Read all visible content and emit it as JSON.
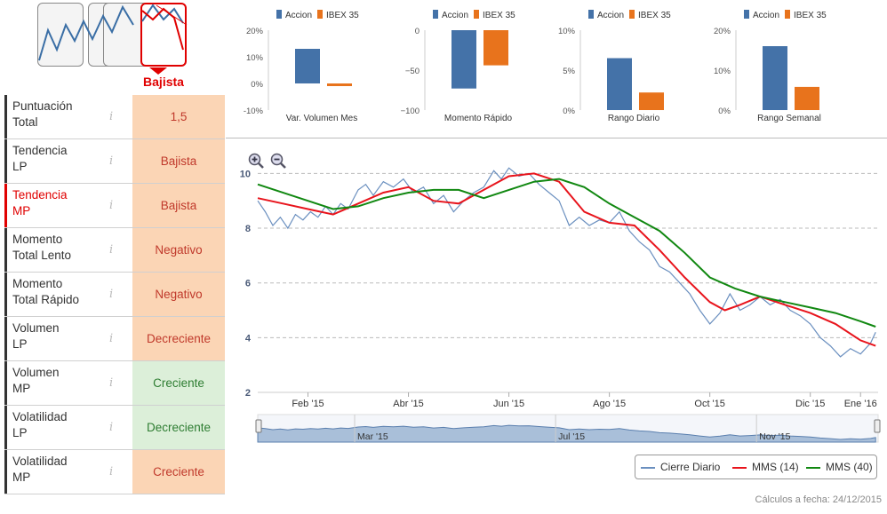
{
  "trend": {
    "active_label": "Bajista",
    "thumbnails": [
      "alcista",
      "lateral-alcista",
      "lateral",
      "bajista"
    ]
  },
  "ratings": [
    {
      "label_l1": "Puntuación",
      "label_l2": "Total",
      "value": "1,5",
      "tone": "bad",
      "highlight": false
    },
    {
      "label_l1": "Tendencia",
      "label_l2": "LP",
      "value": "Bajista",
      "tone": "bad",
      "highlight": false
    },
    {
      "label_l1": "Tendencia",
      "label_l2": "MP",
      "value": "Bajista",
      "tone": "bad",
      "highlight": true
    },
    {
      "label_l1": "Momento",
      "label_l2": "Total Lento",
      "value": "Negativo",
      "tone": "bad",
      "highlight": false
    },
    {
      "label_l1": "Momento",
      "label_l2": "Total Rápido",
      "value": "Negativo",
      "tone": "bad",
      "highlight": false
    },
    {
      "label_l1": "Volumen",
      "label_l2": "LP",
      "value": "Decreciente",
      "tone": "bad",
      "highlight": false
    },
    {
      "label_l1": "Volumen",
      "label_l2": "MP",
      "value": "Creciente",
      "tone": "good",
      "highlight": false
    },
    {
      "label_l1": "Volatilidad",
      "label_l2": "LP",
      "value": "Decreciente",
      "tone": "good",
      "highlight": false
    },
    {
      "label_l1": "Volatilidad",
      "label_l2": "MP",
      "value": "Creciente",
      "tone": "bad",
      "highlight": false
    }
  ],
  "info_icon": "i",
  "colors": {
    "accion": "#4472a8",
    "ibex": "#e8731c",
    "cierre": "#6a8fbf",
    "mms14": "#e8141c",
    "mms40": "#118811"
  },
  "chart_data": [
    {
      "type": "bar",
      "title": "Var. Volumen Mes",
      "legend": [
        "Accion",
        "IBEX 35"
      ],
      "categories": [
        "Accion",
        "IBEX 35"
      ],
      "values": [
        13,
        -1
      ],
      "yticks": [
        "20%",
        "10%",
        "0%",
        "-10%"
      ],
      "tick_values": [
        20,
        10,
        0,
        -10
      ],
      "ylim": [
        -10,
        20
      ]
    },
    {
      "type": "bar",
      "title": "Momento Rápido",
      "legend": [
        "Accion",
        "IBEX 35"
      ],
      "categories": [
        "Accion",
        "IBEX 35"
      ],
      "values": [
        -73,
        -44
      ],
      "yticks": [
        "0",
        "−50",
        "−100"
      ],
      "tick_values": [
        0,
        -50,
        -100
      ],
      "ylim": [
        -100,
        0
      ]
    },
    {
      "type": "bar",
      "title": "Rango Diario",
      "legend": [
        "Accion",
        "IBEX 35"
      ],
      "categories": [
        "Accion",
        "IBEX 35"
      ],
      "values": [
        6.5,
        2.2
      ],
      "yticks": [
        "10%",
        "5%",
        "0%"
      ],
      "tick_values": [
        10,
        5,
        0
      ],
      "ylim": [
        0,
        10
      ]
    },
    {
      "type": "bar",
      "title": "Rango Semanal",
      "legend": [
        "Accion",
        "IBEX 35"
      ],
      "categories": [
        "Accion",
        "IBEX 35"
      ],
      "values": [
        16,
        5.8
      ],
      "yticks": [
        "20%",
        "10%",
        "0%"
      ],
      "tick_values": [
        20,
        10,
        0
      ],
      "ylim": [
        0,
        20
      ]
    },
    {
      "type": "line",
      "title": "",
      "x_months": [
        "Feb '15",
        "Abr '15",
        "Jun '15",
        "Ago '15",
        "Oct '15",
        "Dic '15",
        "Ene '16"
      ],
      "x_month_pos": [
        1,
        3,
        5,
        7,
        9,
        11,
        12
      ],
      "ylim": [
        2,
        10.5
      ],
      "yticks": [
        "10",
        "8",
        "6",
        "4",
        "2"
      ],
      "ytick_values": [
        10,
        8,
        6,
        4,
        2
      ],
      "x_range": [
        0,
        12.35
      ],
      "series": [
        {
          "name": "Cierre Diario",
          "points": [
            [
              0,
              9.0
            ],
            [
              0.15,
              8.6
            ],
            [
              0.3,
              8.1
            ],
            [
              0.45,
              8.4
            ],
            [
              0.6,
              8.0
            ],
            [
              0.75,
              8.5
            ],
            [
              0.9,
              8.3
            ],
            [
              1.05,
              8.6
            ],
            [
              1.2,
              8.4
            ],
            [
              1.35,
              8.8
            ],
            [
              1.5,
              8.5
            ],
            [
              1.65,
              8.9
            ],
            [
              1.8,
              8.7
            ],
            [
              2.0,
              9.4
            ],
            [
              2.15,
              9.6
            ],
            [
              2.3,
              9.2
            ],
            [
              2.5,
              9.7
            ],
            [
              2.7,
              9.5
            ],
            [
              2.9,
              9.8
            ],
            [
              3.1,
              9.3
            ],
            [
              3.3,
              9.5
            ],
            [
              3.5,
              8.9
            ],
            [
              3.7,
              9.2
            ],
            [
              3.9,
              8.6
            ],
            [
              4.1,
              9.0
            ],
            [
              4.3,
              9.3
            ],
            [
              4.5,
              9.5
            ],
            [
              4.7,
              10.1
            ],
            [
              4.85,
              9.8
            ],
            [
              5.0,
              10.2
            ],
            [
              5.2,
              9.9
            ],
            [
              5.4,
              10.0
            ],
            [
              5.6,
              9.6
            ],
            [
              5.8,
              9.3
            ],
            [
              6.0,
              9.0
            ],
            [
              6.2,
              8.1
            ],
            [
              6.4,
              8.4
            ],
            [
              6.6,
              8.1
            ],
            [
              6.8,
              8.3
            ],
            [
              7.0,
              8.2
            ],
            [
              7.2,
              8.6
            ],
            [
              7.4,
              7.9
            ],
            [
              7.6,
              7.5
            ],
            [
              7.8,
              7.2
            ],
            [
              8.0,
              6.6
            ],
            [
              8.2,
              6.4
            ],
            [
              8.4,
              6.0
            ],
            [
              8.6,
              5.6
            ],
            [
              8.8,
              5.0
            ],
            [
              9.0,
              4.5
            ],
            [
              9.2,
              4.9
            ],
            [
              9.4,
              5.6
            ],
            [
              9.6,
              5.0
            ],
            [
              9.8,
              5.2
            ],
            [
              10.0,
              5.5
            ],
            [
              10.2,
              5.2
            ],
            [
              10.4,
              5.4
            ],
            [
              10.6,
              5.0
            ],
            [
              10.8,
              4.8
            ],
            [
              11.0,
              4.5
            ],
            [
              11.2,
              4.0
            ],
            [
              11.4,
              3.7
            ],
            [
              11.6,
              3.3
            ],
            [
              11.8,
              3.6
            ],
            [
              12.0,
              3.4
            ],
            [
              12.2,
              3.8
            ],
            [
              12.3,
              4.2
            ]
          ]
        },
        {
          "name": "MMS (14)",
          "points": [
            [
              0,
              9.1
            ],
            [
              0.5,
              8.9
            ],
            [
              1.0,
              8.7
            ],
            [
              1.5,
              8.5
            ],
            [
              2.0,
              8.9
            ],
            [
              2.5,
              9.3
            ],
            [
              3.0,
              9.5
            ],
            [
              3.5,
              9.0
            ],
            [
              4.0,
              8.9
            ],
            [
              4.5,
              9.4
            ],
            [
              5.0,
              9.9
            ],
            [
              5.5,
              10.0
            ],
            [
              6.0,
              9.7
            ],
            [
              6.5,
              8.6
            ],
            [
              7.0,
              8.2
            ],
            [
              7.5,
              8.1
            ],
            [
              8.0,
              7.2
            ],
            [
              8.5,
              6.2
            ],
            [
              9.0,
              5.3
            ],
            [
              9.3,
              5.0
            ],
            [
              9.6,
              5.2
            ],
            [
              10.0,
              5.5
            ],
            [
              10.5,
              5.2
            ],
            [
              11.0,
              4.9
            ],
            [
              11.5,
              4.5
            ],
            [
              12.0,
              3.9
            ],
            [
              12.3,
              3.7
            ]
          ]
        },
        {
          "name": "MMS (40)",
          "points": [
            [
              0,
              9.6
            ],
            [
              1.0,
              9.0
            ],
            [
              1.5,
              8.7
            ],
            [
              2.0,
              8.8
            ],
            [
              2.5,
              9.1
            ],
            [
              3.0,
              9.3
            ],
            [
              3.5,
              9.4
            ],
            [
              4.0,
              9.4
            ],
            [
              4.5,
              9.1
            ],
            [
              5.0,
              9.4
            ],
            [
              5.5,
              9.7
            ],
            [
              6.0,
              9.8
            ],
            [
              6.5,
              9.5
            ],
            [
              7.0,
              8.9
            ],
            [
              7.5,
              8.4
            ],
            [
              8.0,
              7.9
            ],
            [
              8.5,
              7.1
            ],
            [
              9.0,
              6.2
            ],
            [
              9.5,
              5.8
            ],
            [
              10.0,
              5.5
            ],
            [
              10.5,
              5.3
            ],
            [
              11.0,
              5.1
            ],
            [
              11.5,
              4.9
            ],
            [
              12.0,
              4.6
            ],
            [
              12.3,
              4.4
            ]
          ]
        }
      ],
      "navigator_months": [
        "Mar '15",
        "Jul '15",
        "Nov '15"
      ],
      "navigator_month_pos": [
        2,
        6,
        10
      ],
      "legend": [
        "Cierre Diario",
        "MMS (14)",
        "MMS (40)"
      ]
    }
  ],
  "footer": "Cálculos a fecha: 24/12/2015"
}
